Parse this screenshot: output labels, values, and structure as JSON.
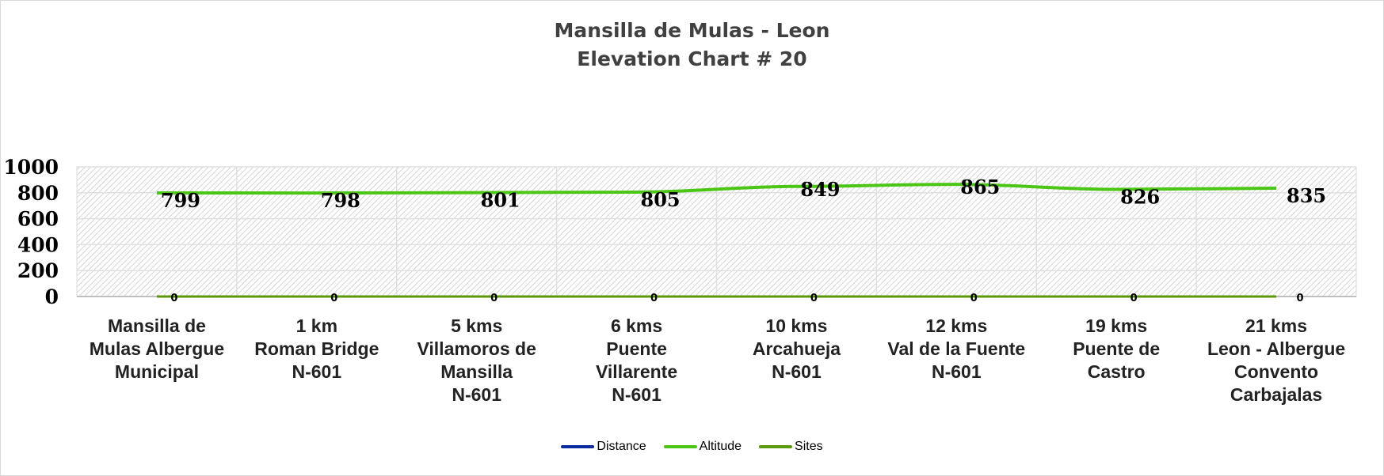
{
  "chart_data": {
    "type": "line",
    "title": "Mansilla de Mulas - Leon",
    "subtitle": "Elevation Chart # 20",
    "categories": [
      [
        "Mansilla de",
        "Mulas Albergue",
        "Municipal"
      ],
      [
        "1 km",
        "Roman Bridge",
        "N-601"
      ],
      [
        "5  kms",
        "Villamoros de",
        "Mansilla",
        "N-601"
      ],
      [
        "6 kms",
        "Puente",
        "Villarente",
        "N-601"
      ],
      [
        "10  kms",
        "Arcahueja",
        "N-601"
      ],
      [
        "12  kms",
        "Val de la Fuente",
        "N-601"
      ],
      [
        "19 kms",
        "Puente de",
        "Castro"
      ],
      [
        "21 kms",
        "Leon - Albergue",
        "Convento",
        "Carbajalas"
      ]
    ],
    "series": [
      {
        "name": "Distance",
        "color": "#0a2a9e",
        "values": [
          0,
          0,
          0,
          0,
          0,
          0,
          0,
          0
        ]
      },
      {
        "name": "Altitude",
        "color": "#4cc614",
        "values": [
          799,
          798,
          801,
          805,
          849,
          865,
          826,
          835
        ]
      },
      {
        "name": "Sites",
        "color": "#5a9a08",
        "values": [
          0,
          0,
          0,
          0,
          0,
          0,
          0,
          0
        ]
      }
    ],
    "yticks": [
      "0",
      "200",
      "400",
      "600",
      "800",
      "1000"
    ],
    "ylim": [
      0,
      1000
    ],
    "grid": true,
    "legend": "bottom"
  }
}
